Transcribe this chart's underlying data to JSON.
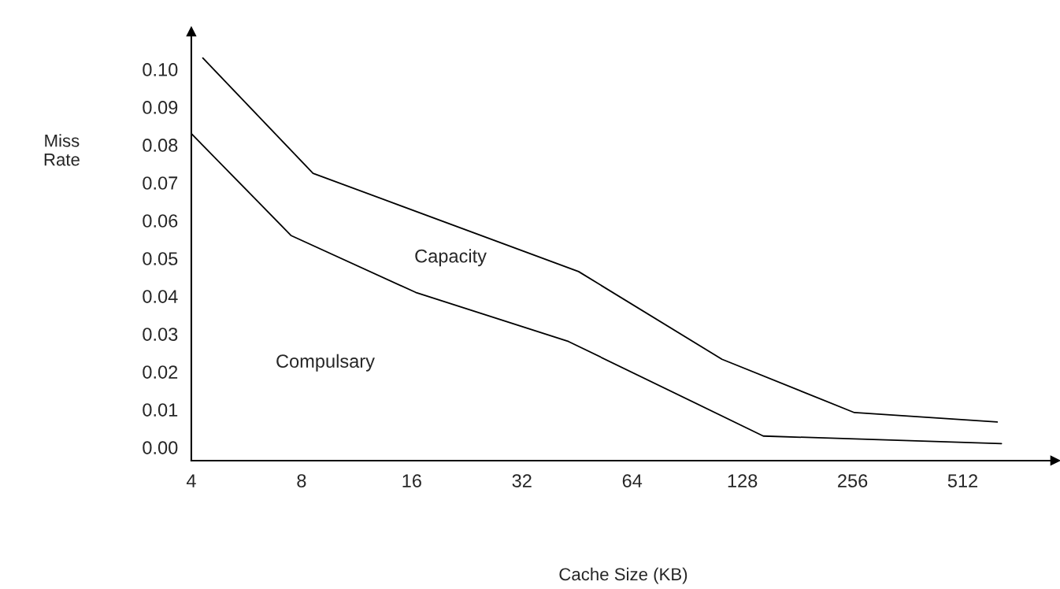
{
  "chart_data": {
    "type": "line",
    "xlabel": "Cache Size (KB)",
    "ylabel": "Miss\nRate",
    "log": "x",
    "xlim": [
      4,
      916
    ],
    "xticks": [
      4,
      8,
      16,
      32,
      64,
      128,
      256,
      512
    ],
    "ylim": [
      -0.0035,
      0.11
    ],
    "yticks": [
      {
        "value": 0,
        "label": "0.00"
      },
      {
        "value": 0.01,
        "label": "0.01"
      },
      {
        "value": 0.02,
        "label": "0.02"
      },
      {
        "value": 0.03,
        "label": "0.03"
      },
      {
        "value": 0.04,
        "label": "0.04"
      },
      {
        "value": 0.05,
        "label": "0.05"
      },
      {
        "value": 0.06,
        "label": "0.06"
      },
      {
        "value": 0.07,
        "label": "0.07"
      },
      {
        "value": 0.08,
        "label": "0.08"
      },
      {
        "value": 0.09,
        "label": "0.09"
      },
      {
        "value": 0.1,
        "label": "0.10"
      }
    ],
    "series": [
      {
        "color": "#000000",
        "x": [
          4.3,
          8.6,
          45.7,
          112.6,
          259,
          636
        ],
        "values": [
          0.103,
          0.0725,
          0.0465,
          0.0233,
          0.0092,
          0.0067
        ]
      },
      {
        "color": "#000000",
        "x": [
          4,
          7.5,
          16.4,
          42.9,
          146,
          653
        ],
        "values": [
          0.083,
          0.056,
          0.041,
          0.028,
          0.003,
          0.001
        ]
      }
    ],
    "annotations": [
      "Capacity",
      "Compulsary"
    ],
    "grid": false,
    "legend": false
  }
}
